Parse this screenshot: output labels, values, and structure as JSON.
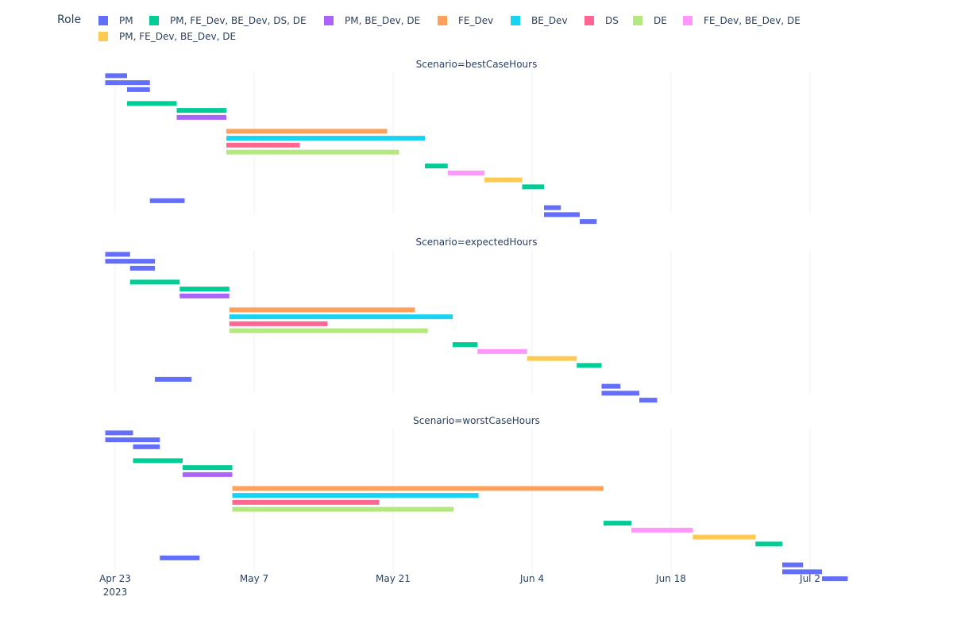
{
  "legend": {
    "title": "Role",
    "entries": [
      {
        "name": "PM",
        "color": "#636EFA"
      },
      {
        "name": "PM, FE_Dev, BE_Dev, DS, DE",
        "color": "#00CC96"
      },
      {
        "name": "PM, BE_Dev, DE",
        "color": "#AB63FA"
      },
      {
        "name": "FE_Dev",
        "color": "#FFA15A"
      },
      {
        "name": "BE_Dev",
        "color": "#19D3F3"
      },
      {
        "name": "DS",
        "color": "#FF6692"
      },
      {
        "name": "DE",
        "color": "#B6E880"
      },
      {
        "name": "FE_Dev, BE_Dev, DE",
        "color": "#FF97FF"
      },
      {
        "name": "PM, FE_Dev, BE_Dev, DE",
        "color": "#FECB52"
      }
    ]
  },
  "chart_data": {
    "type": "timeline",
    "facet_titles": [
      "Scenario=bestCaseHours",
      "Scenario=expectedHours",
      "Scenario=worstCaseHours"
    ],
    "x_ticks": [
      {
        "date": "2023-04-23",
        "label": "Apr 23",
        "sublabel": "2023"
      },
      {
        "date": "2023-05-07",
        "label": "May 7",
        "sublabel": ""
      },
      {
        "date": "2023-05-21",
        "label": "May 21",
        "sublabel": ""
      },
      {
        "date": "2023-06-04",
        "label": "Jun 4",
        "sublabel": ""
      },
      {
        "date": "2023-06-18",
        "label": "Jun 18",
        "sublabel": ""
      },
      {
        "date": "2023-07-02",
        "label": "Jul 2",
        "sublabel": ""
      }
    ],
    "xlim": [
      "2023-04-21",
      "2023-07-08"
    ],
    "grid": true,
    "legend_position": "top",
    "panels": [
      {
        "scenario": "bestCaseHours",
        "tasks": [
          {
            "row": 0,
            "role": "PM",
            "start": "2023-04-22",
            "end": "2023-04-24.2"
          },
          {
            "row": 1,
            "role": "PM",
            "start": "2023-04-22",
            "end": "2023-04-26.5"
          },
          {
            "row": 2,
            "role": "PM",
            "start": "2023-04-24.2",
            "end": "2023-04-26.5"
          },
          {
            "row": 4,
            "role": "PM, FE_Dev, BE_Dev, DS, DE",
            "start": "2023-04-24.2",
            "end": "2023-04-29.2"
          },
          {
            "row": 5,
            "role": "PM, FE_Dev, BE_Dev, DS, DE",
            "start": "2023-04-29.2",
            "end": "2023-05-04.2"
          },
          {
            "row": 6,
            "role": "PM, BE_Dev, DE",
            "start": "2023-04-29.2",
            "end": "2023-05-04.2"
          },
          {
            "row": 8,
            "role": "FE_Dev",
            "start": "2023-05-04.2",
            "end": "2023-05-20.4"
          },
          {
            "row": 9,
            "role": "BE_Dev",
            "start": "2023-05-04.2",
            "end": "2023-05-24.2"
          },
          {
            "row": 10,
            "role": "DS",
            "start": "2023-05-04.2",
            "end": "2023-05-11.6"
          },
          {
            "row": 11,
            "role": "DE",
            "start": "2023-05-04.2",
            "end": "2023-05-21.6"
          },
          {
            "row": 13,
            "role": "PM, FE_Dev, BE_Dev, DS, DE",
            "start": "2023-05-24.2",
            "end": "2023-05-26.5"
          },
          {
            "row": 14,
            "role": "FE_Dev, BE_Dev, DE",
            "start": "2023-05-26.5",
            "end": "2023-05-30.2"
          },
          {
            "row": 15,
            "role": "PM, FE_Dev, BE_Dev, DE",
            "start": "2023-05-30.2",
            "end": "2023-06-03"
          },
          {
            "row": 16,
            "role": "PM, FE_Dev, BE_Dev, DS, DE",
            "start": "2023-06-03",
            "end": "2023-06-05.2"
          },
          {
            "row": 18,
            "role": "PM",
            "start": "2023-04-26.5",
            "end": "2023-04-30"
          },
          {
            "row": 19,
            "role": "PM",
            "start": "2023-06-05.2",
            "end": "2023-06-06.9"
          },
          {
            "row": 20,
            "role": "PM",
            "start": "2023-06-05.2",
            "end": "2023-06-08.8"
          },
          {
            "row": 21,
            "role": "PM",
            "start": "2023-06-08.8",
            "end": "2023-06-10.5"
          }
        ]
      },
      {
        "scenario": "expectedHours",
        "tasks": [
          {
            "row": 0,
            "role": "PM",
            "start": "2023-04-22",
            "end": "2023-04-24.5"
          },
          {
            "row": 1,
            "role": "PM",
            "start": "2023-04-22",
            "end": "2023-04-27"
          },
          {
            "row": 2,
            "role": "PM",
            "start": "2023-04-24.5",
            "end": "2023-04-27"
          },
          {
            "row": 4,
            "role": "PM, FE_Dev, BE_Dev, DS, DE",
            "start": "2023-04-24.5",
            "end": "2023-04-29.5"
          },
          {
            "row": 5,
            "role": "PM, FE_Dev, BE_Dev, DS, DE",
            "start": "2023-04-29.5",
            "end": "2023-05-04.5"
          },
          {
            "row": 6,
            "role": "PM, BE_Dev, DE",
            "start": "2023-04-29.5",
            "end": "2023-05-04.5"
          },
          {
            "row": 8,
            "role": "FE_Dev",
            "start": "2023-05-04.5",
            "end": "2023-05-23.2"
          },
          {
            "row": 9,
            "role": "BE_Dev",
            "start": "2023-05-04.5",
            "end": "2023-05-27"
          },
          {
            "row": 10,
            "role": "DS",
            "start": "2023-05-04.5",
            "end": "2023-05-14.4"
          },
          {
            "row": 11,
            "role": "DE",
            "start": "2023-05-04.5",
            "end": "2023-05-24.5"
          },
          {
            "row": 13,
            "role": "PM, FE_Dev, BE_Dev, DS, DE",
            "start": "2023-05-27",
            "end": "2023-05-29.5"
          },
          {
            "row": 14,
            "role": "FE_Dev, BE_Dev, DE",
            "start": "2023-05-29.5",
            "end": "2023-06-03.5"
          },
          {
            "row": 15,
            "role": "PM, FE_Dev, BE_Dev, DE",
            "start": "2023-06-03.5",
            "end": "2023-06-08.5"
          },
          {
            "row": 16,
            "role": "PM, FE_Dev, BE_Dev, DS, DE",
            "start": "2023-06-08.5",
            "end": "2023-06-11"
          },
          {
            "row": 18,
            "role": "PM",
            "start": "2023-04-27",
            "end": "2023-04-30.7"
          },
          {
            "row": 19,
            "role": "PM",
            "start": "2023-06-11",
            "end": "2023-06-12.9"
          },
          {
            "row": 20,
            "role": "PM",
            "start": "2023-06-11",
            "end": "2023-06-14.8"
          },
          {
            "row": 21,
            "role": "PM",
            "start": "2023-06-14.8",
            "end": "2023-06-16.6"
          }
        ]
      },
      {
        "scenario": "worstCaseHours",
        "tasks": [
          {
            "row": 0,
            "role": "PM",
            "start": "2023-04-22",
            "end": "2023-04-24.8"
          },
          {
            "row": 1,
            "role": "PM",
            "start": "2023-04-22",
            "end": "2023-04-27.5"
          },
          {
            "row": 2,
            "role": "PM",
            "start": "2023-04-24.8",
            "end": "2023-04-27.5"
          },
          {
            "row": 4,
            "role": "PM, FE_Dev, BE_Dev, DS, DE",
            "start": "2023-04-24.8",
            "end": "2023-04-29.8"
          },
          {
            "row": 5,
            "role": "PM, FE_Dev, BE_Dev, DS, DE",
            "start": "2023-04-29.8",
            "end": "2023-05-04.8"
          },
          {
            "row": 6,
            "role": "PM, BE_Dev, DE",
            "start": "2023-04-29.8",
            "end": "2023-05-04.8"
          },
          {
            "row": 8,
            "role": "FE_Dev",
            "start": "2023-05-04.8",
            "end": "2023-06-11.2"
          },
          {
            "row": 9,
            "role": "BE_Dev",
            "start": "2023-05-04.8",
            "end": "2023-05-29.6"
          },
          {
            "row": 10,
            "role": "DS",
            "start": "2023-05-04.8",
            "end": "2023-05-19.6"
          },
          {
            "row": 11,
            "role": "DE",
            "start": "2023-05-04.8",
            "end": "2023-05-27.1"
          },
          {
            "row": 13,
            "role": "PM, FE_Dev, BE_Dev, DS, DE",
            "start": "2023-06-11.2",
            "end": "2023-06-14"
          },
          {
            "row": 14,
            "role": "FE_Dev, BE_Dev, DE",
            "start": "2023-06-14",
            "end": "2023-06-20.2"
          },
          {
            "row": 15,
            "role": "PM, FE_Dev, BE_Dev, DE",
            "start": "2023-06-20.2",
            "end": "2023-06-26.5"
          },
          {
            "row": 16,
            "role": "PM, FE_Dev, BE_Dev, DS, DE",
            "start": "2023-06-26.5",
            "end": "2023-06-29.2"
          },
          {
            "row": 18,
            "role": "PM",
            "start": "2023-04-27.5",
            "end": "2023-05-01.5"
          },
          {
            "row": 19,
            "role": "PM",
            "start": "2023-06-29.2",
            "end": "2023-07-01.3"
          },
          {
            "row": 20,
            "role": "PM",
            "start": "2023-06-29.2",
            "end": "2023-07-03.2"
          },
          {
            "row": 21,
            "role": "PM",
            "start": "2023-07-03.2",
            "end": "2023-07-05.8"
          }
        ]
      }
    ]
  }
}
